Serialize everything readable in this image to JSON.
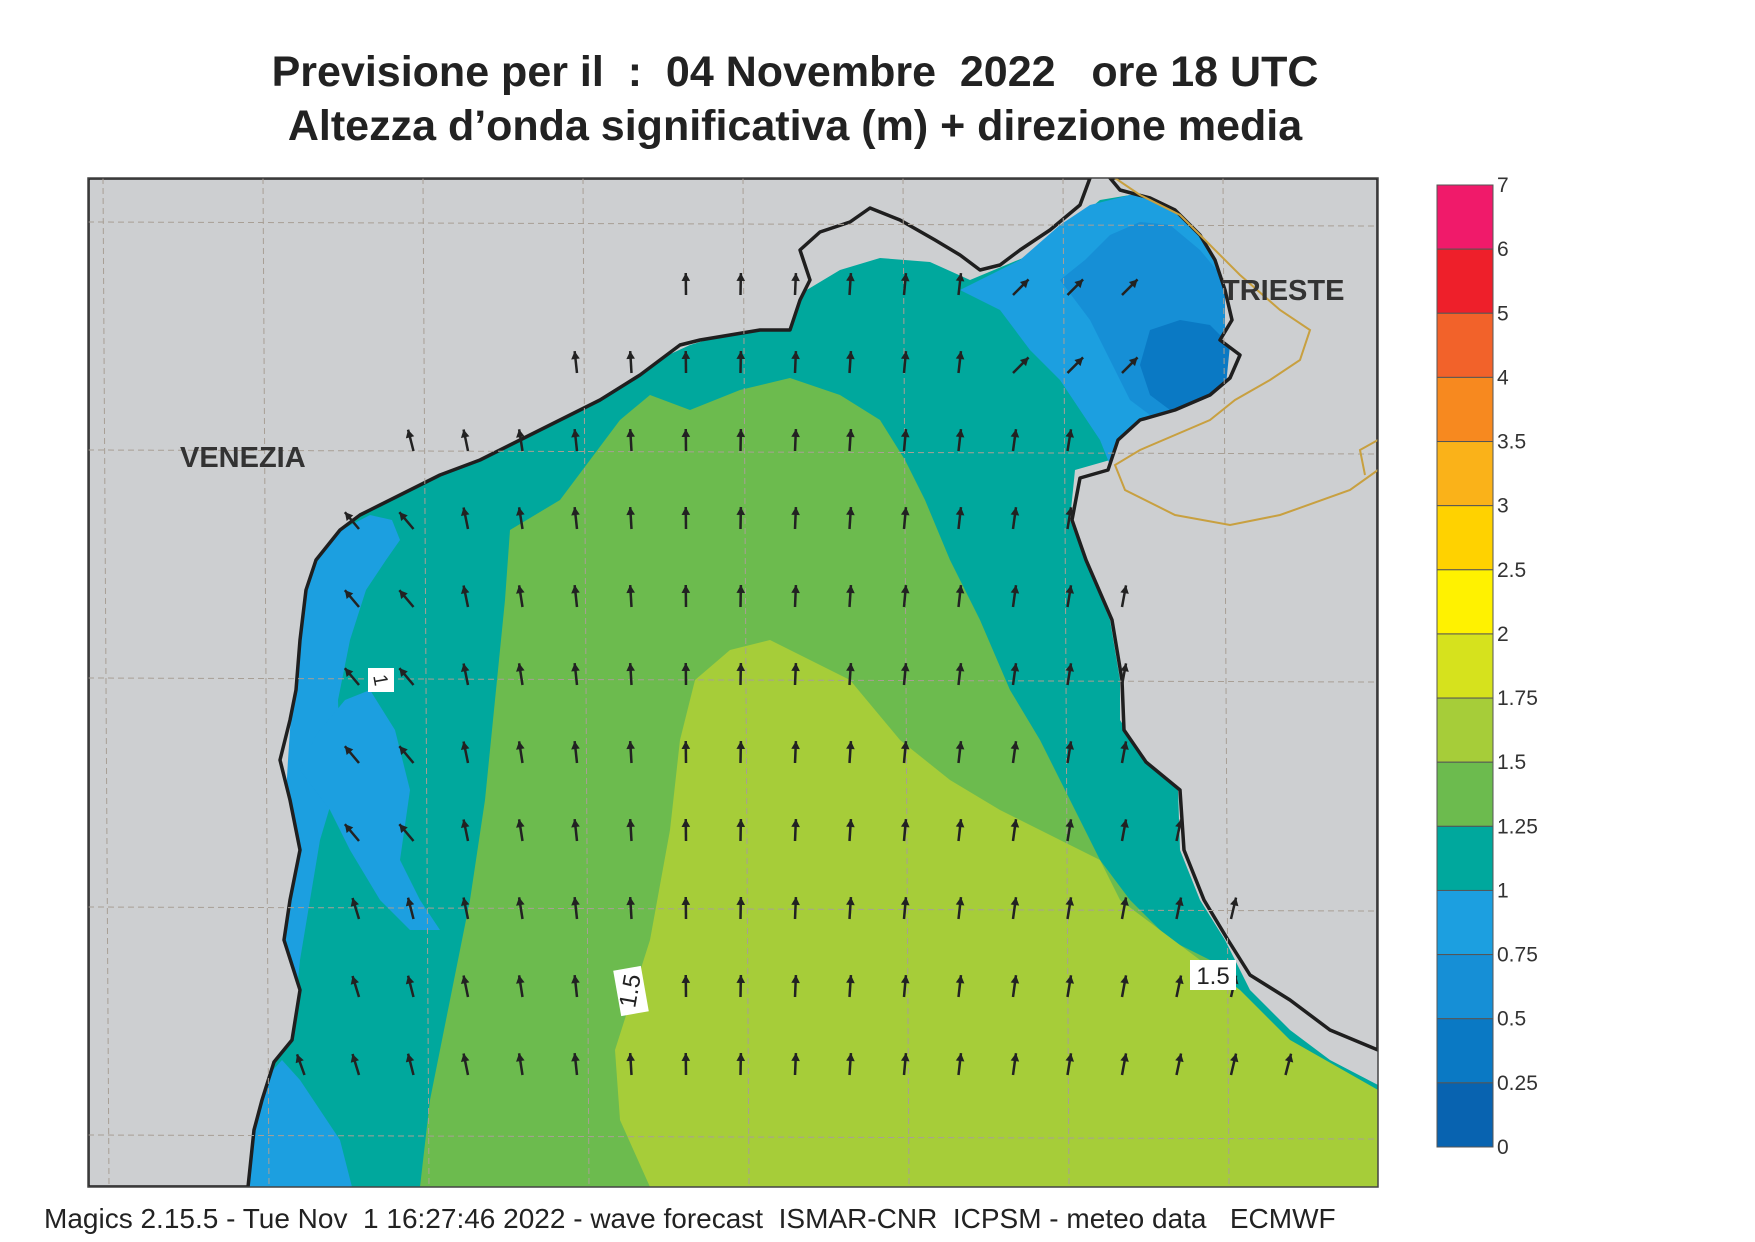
{
  "title": {
    "line1": "Previsione per il  :  04 Novembre  2022   ore 18 UTC",
    "line2": "Altezza d’onda significativa (m) + direzione media"
  },
  "map": {
    "place_labels": [
      "VENEZIA",
      "TRIESTE"
    ],
    "contour_labels": [
      "1",
      "1.5",
      "1.5"
    ]
  },
  "legend": {
    "levels": [
      {
        "value": 7,
        "label": "7",
        "color": "#f01a6a"
      },
      {
        "value": 6,
        "label": "6",
        "color": "#ee1f2a"
      },
      {
        "value": 5,
        "label": "5",
        "color": "#f2622a"
      },
      {
        "value": 4,
        "label": "4",
        "color": "#f7891f"
      },
      {
        "value": 3.5,
        "label": "3.5",
        "color": "#fab219"
      },
      {
        "value": 3,
        "label": "3",
        "color": "#ffd200"
      },
      {
        "value": 2.5,
        "label": "2.5",
        "color": "#fff200"
      },
      {
        "value": 2,
        "label": "2",
        "color": "#d6e21d"
      },
      {
        "value": 1.75,
        "label": "1.75",
        "color": "#a6cd39"
      },
      {
        "value": 1.5,
        "label": "1.5",
        "color": "#6cbb4e"
      },
      {
        "value": 1.25,
        "label": "1.25",
        "color": "#00a89d"
      },
      {
        "value": 1,
        "label": "1",
        "color": "#1c9fe0"
      },
      {
        "value": 0.75,
        "label": "0.75",
        "color": "#168fd6"
      },
      {
        "value": 0.5,
        "label": "0.5",
        "color": "#0a79c4"
      },
      {
        "value": 0.25,
        "label": "0.25",
        "color": "#0863b0"
      },
      {
        "value": 0,
        "label": "0",
        "color": ""
      }
    ]
  },
  "colors": {
    "land": "#cdcfd1",
    "coast": "#1f1f1f",
    "border": "#c8a040",
    "grid": "#a89f95",
    "arrow": "#222222"
  },
  "footer": "Magics 2.15.5 - Tue Nov  1 16:27:46 2022 - wave forecast  ISMAR-CNR  ICPSM - meteo data   ECMWF"
}
